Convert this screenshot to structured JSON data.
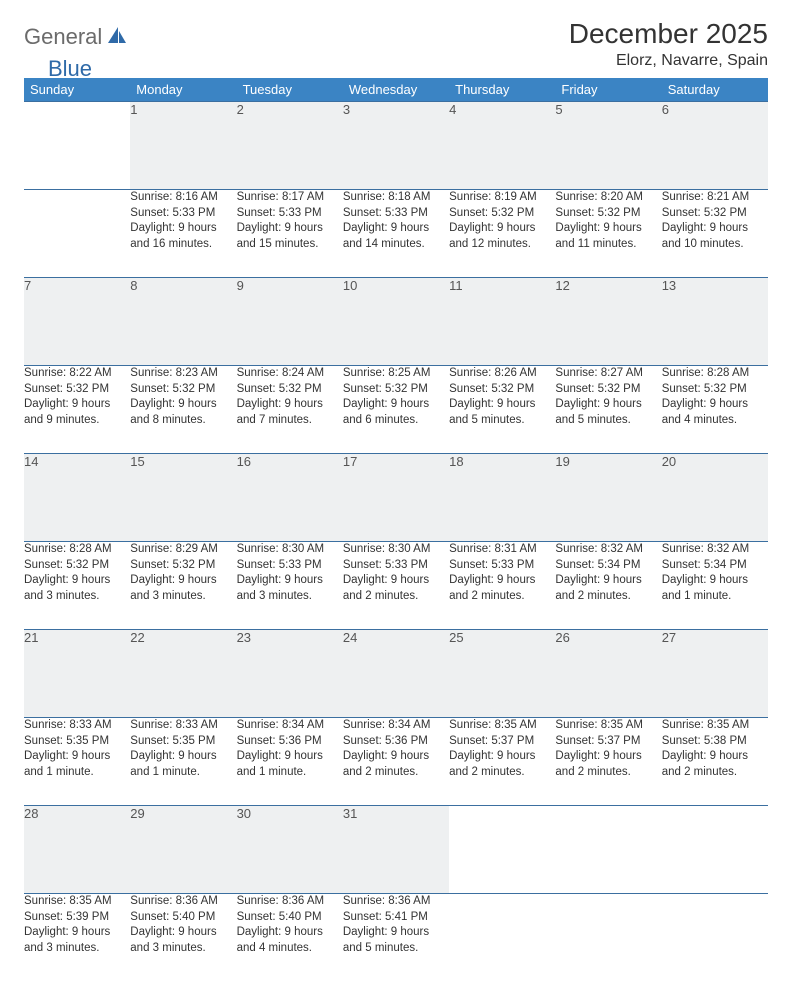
{
  "brand": {
    "part1": "General",
    "part2": "Blue"
  },
  "title": "December 2025",
  "location": "Elorz, Navarre, Spain",
  "colors": {
    "header_bg": "#3b84c4",
    "header_text": "#ffffff",
    "daynum_bg": "#eef0f1",
    "border": "#3b6fa0",
    "brand_gray": "#6b6b6b",
    "brand_blue": "#2f6aa8"
  },
  "weekdays": [
    "Sunday",
    "Monday",
    "Tuesday",
    "Wednesday",
    "Thursday",
    "Friday",
    "Saturday"
  ],
  "weeks": [
    {
      "nums": [
        "",
        "1",
        "2",
        "3",
        "4",
        "5",
        "6"
      ],
      "cells": [
        null,
        {
          "sunrise": "8:16 AM",
          "sunset": "5:33 PM",
          "daylight": "9 hours and 16 minutes."
        },
        {
          "sunrise": "8:17 AM",
          "sunset": "5:33 PM",
          "daylight": "9 hours and 15 minutes."
        },
        {
          "sunrise": "8:18 AM",
          "sunset": "5:33 PM",
          "daylight": "9 hours and 14 minutes."
        },
        {
          "sunrise": "8:19 AM",
          "sunset": "5:32 PM",
          "daylight": "9 hours and 12 minutes."
        },
        {
          "sunrise": "8:20 AM",
          "sunset": "5:32 PM",
          "daylight": "9 hours and 11 minutes."
        },
        {
          "sunrise": "8:21 AM",
          "sunset": "5:32 PM",
          "daylight": "9 hours and 10 minutes."
        }
      ]
    },
    {
      "nums": [
        "7",
        "8",
        "9",
        "10",
        "11",
        "12",
        "13"
      ],
      "cells": [
        {
          "sunrise": "8:22 AM",
          "sunset": "5:32 PM",
          "daylight": "9 hours and 9 minutes."
        },
        {
          "sunrise": "8:23 AM",
          "sunset": "5:32 PM",
          "daylight": "9 hours and 8 minutes."
        },
        {
          "sunrise": "8:24 AM",
          "sunset": "5:32 PM",
          "daylight": "9 hours and 7 minutes."
        },
        {
          "sunrise": "8:25 AM",
          "sunset": "5:32 PM",
          "daylight": "9 hours and 6 minutes."
        },
        {
          "sunrise": "8:26 AM",
          "sunset": "5:32 PM",
          "daylight": "9 hours and 5 minutes."
        },
        {
          "sunrise": "8:27 AM",
          "sunset": "5:32 PM",
          "daylight": "9 hours and 5 minutes."
        },
        {
          "sunrise": "8:28 AM",
          "sunset": "5:32 PM",
          "daylight": "9 hours and 4 minutes."
        }
      ]
    },
    {
      "nums": [
        "14",
        "15",
        "16",
        "17",
        "18",
        "19",
        "20"
      ],
      "cells": [
        {
          "sunrise": "8:28 AM",
          "sunset": "5:32 PM",
          "daylight": "9 hours and 3 minutes."
        },
        {
          "sunrise": "8:29 AM",
          "sunset": "5:32 PM",
          "daylight": "9 hours and 3 minutes."
        },
        {
          "sunrise": "8:30 AM",
          "sunset": "5:33 PM",
          "daylight": "9 hours and 3 minutes."
        },
        {
          "sunrise": "8:30 AM",
          "sunset": "5:33 PM",
          "daylight": "9 hours and 2 minutes."
        },
        {
          "sunrise": "8:31 AM",
          "sunset": "5:33 PM",
          "daylight": "9 hours and 2 minutes."
        },
        {
          "sunrise": "8:32 AM",
          "sunset": "5:34 PM",
          "daylight": "9 hours and 2 minutes."
        },
        {
          "sunrise": "8:32 AM",
          "sunset": "5:34 PM",
          "daylight": "9 hours and 1 minute."
        }
      ]
    },
    {
      "nums": [
        "21",
        "22",
        "23",
        "24",
        "25",
        "26",
        "27"
      ],
      "cells": [
        {
          "sunrise": "8:33 AM",
          "sunset": "5:35 PM",
          "daylight": "9 hours and 1 minute."
        },
        {
          "sunrise": "8:33 AM",
          "sunset": "5:35 PM",
          "daylight": "9 hours and 1 minute."
        },
        {
          "sunrise": "8:34 AM",
          "sunset": "5:36 PM",
          "daylight": "9 hours and 1 minute."
        },
        {
          "sunrise": "8:34 AM",
          "sunset": "5:36 PM",
          "daylight": "9 hours and 2 minutes."
        },
        {
          "sunrise": "8:35 AM",
          "sunset": "5:37 PM",
          "daylight": "9 hours and 2 minutes."
        },
        {
          "sunrise": "8:35 AM",
          "sunset": "5:37 PM",
          "daylight": "9 hours and 2 minutes."
        },
        {
          "sunrise": "8:35 AM",
          "sunset": "5:38 PM",
          "daylight": "9 hours and 2 minutes."
        }
      ]
    },
    {
      "nums": [
        "28",
        "29",
        "30",
        "31",
        "",
        "",
        ""
      ],
      "cells": [
        {
          "sunrise": "8:35 AM",
          "sunset": "5:39 PM",
          "daylight": "9 hours and 3 minutes."
        },
        {
          "sunrise": "8:36 AM",
          "sunset": "5:40 PM",
          "daylight": "9 hours and 3 minutes."
        },
        {
          "sunrise": "8:36 AM",
          "sunset": "5:40 PM",
          "daylight": "9 hours and 4 minutes."
        },
        {
          "sunrise": "8:36 AM",
          "sunset": "5:41 PM",
          "daylight": "9 hours and 5 minutes."
        },
        null,
        null,
        null
      ]
    }
  ],
  "labels": {
    "sunrise": "Sunrise:",
    "sunset": "Sunset:",
    "daylight": "Daylight:"
  }
}
